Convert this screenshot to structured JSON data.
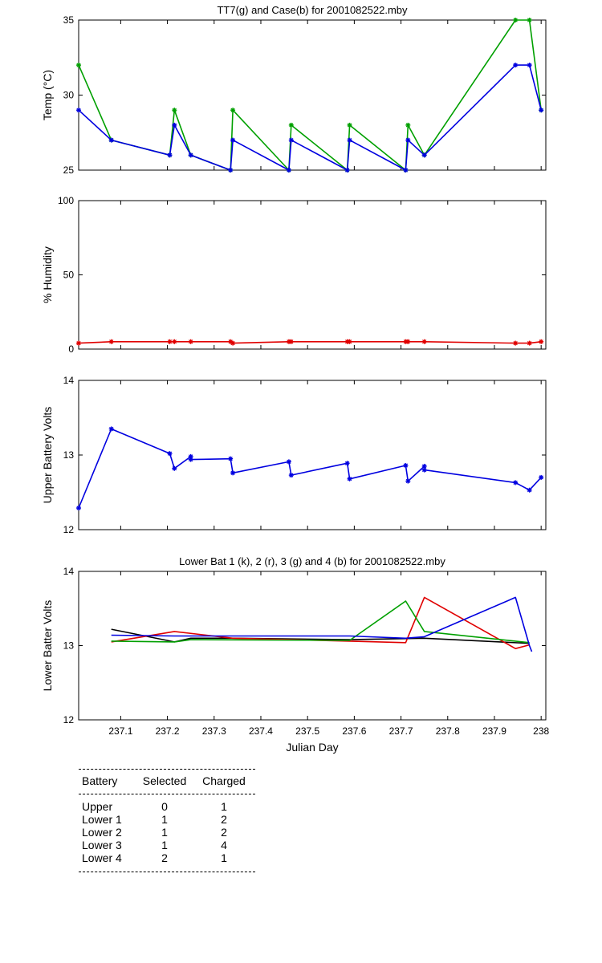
{
  "chart_data": [
    {
      "type": "line",
      "title": "TT7(g) and Case(b) for 2001082522.mby",
      "ylabel": "Temp  (°C)",
      "xlabel": "",
      "xlim": [
        237.01,
        238.01
      ],
      "ylim": [
        25,
        35
      ],
      "yticks": [
        25,
        30,
        35
      ],
      "xticks": [],
      "grid": false,
      "series": [
        {
          "name": "TT7",
          "color": "#00a000",
          "marker": true,
          "x": [
            237.01,
            237.08,
            237.205,
            237.215,
            237.25,
            237.335,
            237.34,
            237.46,
            237.465,
            237.585,
            237.59,
            237.71,
            237.715,
            237.75,
            237.945,
            237.975,
            238.0
          ],
          "y": [
            32,
            27,
            26,
            29,
            26,
            25,
            29,
            25,
            28,
            25,
            28,
            25,
            28,
            26,
            35,
            35,
            29
          ]
        },
        {
          "name": "Case",
          "color": "#0000e0",
          "marker": true,
          "x": [
            237.01,
            237.08,
            237.205,
            237.215,
            237.25,
            237.335,
            237.34,
            237.46,
            237.465,
            237.585,
            237.59,
            237.71,
            237.715,
            237.75,
            237.945,
            237.975,
            238.0
          ],
          "y": [
            29,
            27,
            26,
            28,
            26,
            25,
            27,
            25,
            27,
            25,
            27,
            25,
            27,
            26,
            32,
            32,
            29
          ]
        }
      ]
    },
    {
      "type": "line",
      "title": "",
      "ylabel": "% Humidity",
      "xlabel": "",
      "xlim": [
        237.01,
        238.01
      ],
      "ylim": [
        0,
        100
      ],
      "yticks": [
        0,
        50,
        100
      ],
      "xticks": [],
      "grid": false,
      "series": [
        {
          "name": "Humidity",
          "color": "#e00000",
          "marker": true,
          "x": [
            237.01,
            237.08,
            237.205,
            237.215,
            237.25,
            237.335,
            237.34,
            237.46,
            237.465,
            237.585,
            237.59,
            237.71,
            237.715,
            237.75,
            237.945,
            237.975,
            238.0
          ],
          "y": [
            4,
            5,
            5,
            5,
            5,
            5,
            4,
            5,
            5,
            5,
            5,
            5,
            5,
            5,
            4,
            4,
            5
          ]
        }
      ]
    },
    {
      "type": "line",
      "title": "",
      "ylabel": "Upper Battery Volts",
      "xlabel": "",
      "xlim": [
        237.01,
        238.01
      ],
      "ylim": [
        12,
        14
      ],
      "yticks": [
        12,
        13,
        14
      ],
      "xticks": [],
      "grid": false,
      "series": [
        {
          "name": "Upper",
          "color": "#0000e0",
          "marker": true,
          "x": [
            237.01,
            237.08,
            237.205,
            237.215,
            237.25,
            237.25,
            237.335,
            237.34,
            237.46,
            237.465,
            237.585,
            237.59,
            237.71,
            237.715,
            237.75,
            237.75,
            237.945,
            237.975,
            238.0
          ],
          "y": [
            12.29,
            13.35,
            13.02,
            12.82,
            12.98,
            12.94,
            12.95,
            12.76,
            12.91,
            12.73,
            12.89,
            12.68,
            12.86,
            12.65,
            12.85,
            12.8,
            12.63,
            12.53,
            12.7
          ]
        }
      ]
    },
    {
      "type": "line",
      "title": "Lower Bat 1 (k), 2 (r), 3 (g) and 4 (b) for 2001082522.mby",
      "ylabel": "Lower Batter Volts",
      "xlabel": "Julian Day",
      "xlim": [
        237.01,
        238.01
      ],
      "ylim": [
        12,
        14
      ],
      "yticks": [
        12,
        13,
        14
      ],
      "xticks": [
        237.1,
        237.2,
        237.3,
        237.4,
        237.5,
        237.6,
        237.7,
        237.8,
        237.9,
        238
      ],
      "xtick_labels": [
        "237.1",
        "237.2",
        "237.3",
        "237.4",
        "237.5",
        "237.6",
        "237.7",
        "237.8",
        "237.9",
        "238"
      ],
      "grid": false,
      "series": [
        {
          "name": "1 (k)",
          "color": "#000000",
          "marker": false,
          "x": [
            237.08,
            237.215,
            237.25,
            237.34,
            237.59,
            237.75,
            237.975
          ],
          "y": [
            13.22,
            13.05,
            13.1,
            13.1,
            13.08,
            13.1,
            13.03
          ]
        },
        {
          "name": "2 (r)",
          "color": "#e00000",
          "marker": false,
          "x": [
            237.08,
            237.215,
            237.34,
            237.59,
            237.71,
            237.75,
            237.945,
            237.975
          ],
          "y": [
            13.05,
            13.19,
            13.1,
            13.06,
            13.04,
            13.65,
            12.96,
            13.01
          ]
        },
        {
          "name": "3 (g)",
          "color": "#00a000",
          "marker": false,
          "x": [
            237.08,
            237.215,
            237.25,
            237.59,
            237.71,
            237.75,
            237.975
          ],
          "y": [
            13.06,
            13.05,
            13.08,
            13.07,
            13.6,
            13.19,
            13.04
          ]
        },
        {
          "name": "4 (b)",
          "color": "#0000e0",
          "marker": false,
          "x": [
            237.08,
            237.215,
            237.59,
            237.71,
            237.75,
            237.945,
            237.975,
            237.98
          ],
          "y": [
            13.14,
            13.13,
            13.13,
            13.1,
            13.12,
            13.65,
            13.0,
            12.92
          ]
        }
      ]
    }
  ],
  "table": {
    "headers": [
      "Battery",
      "Selected",
      "Charged"
    ],
    "rows": [
      [
        "Upper",
        "0",
        "1"
      ],
      [
        "Lower 1",
        "1",
        "2"
      ],
      [
        "Lower 2",
        "1",
        "2"
      ],
      [
        "Lower 3",
        "1",
        "4"
      ],
      [
        "Lower 4",
        "2",
        "1"
      ]
    ]
  }
}
